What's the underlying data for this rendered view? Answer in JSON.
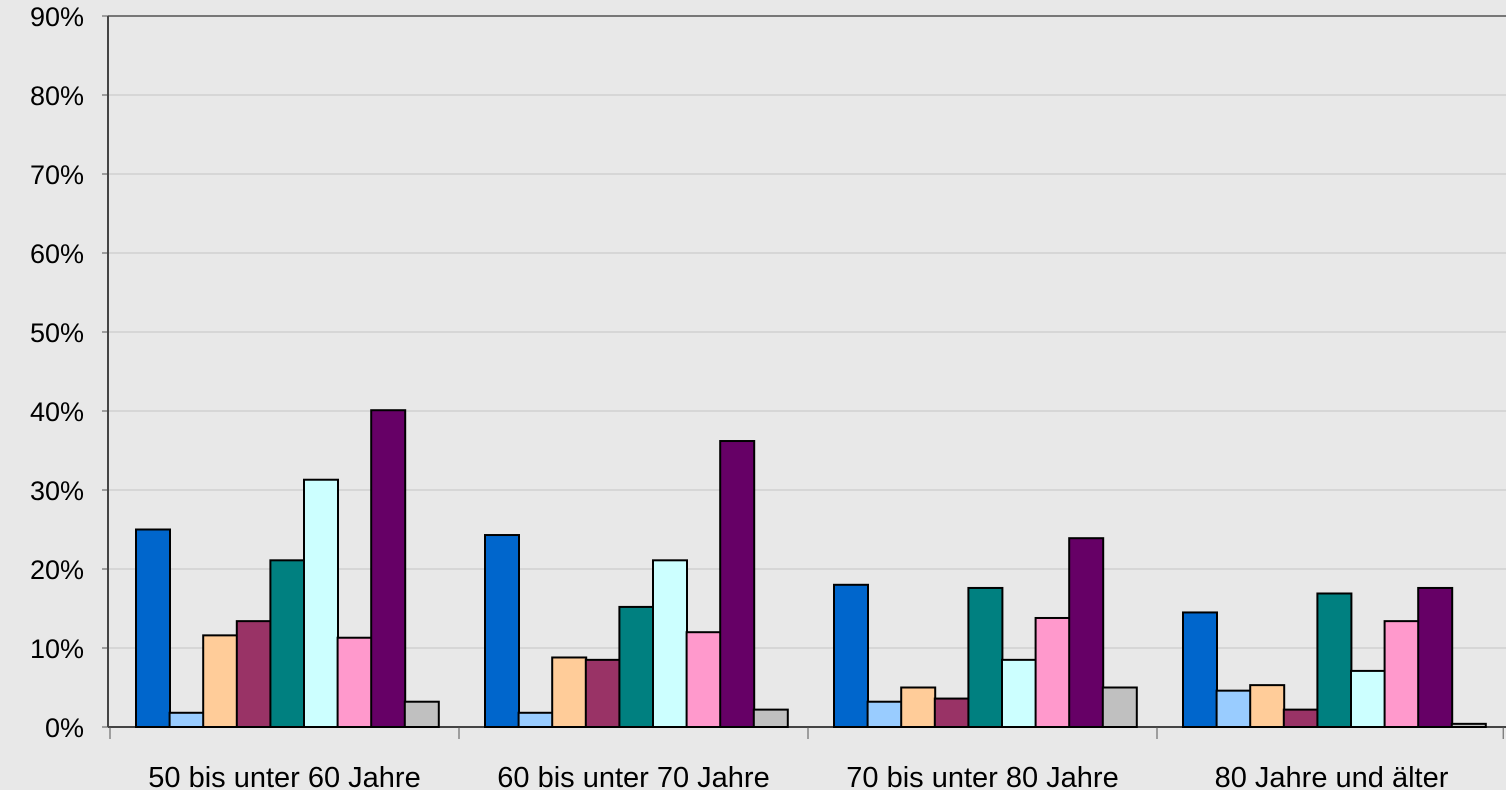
{
  "chart_data": {
    "type": "bar",
    "title": "",
    "xlabel": "",
    "ylabel": "",
    "ylim": [
      0,
      90
    ],
    "yticks": [
      0,
      10,
      20,
      30,
      40,
      50,
      60,
      70,
      80,
      90
    ],
    "ytick_labels": [
      "0%",
      "10%",
      "20%",
      "30%",
      "40%",
      "50%",
      "60%",
      "70%",
      "80%",
      "90%"
    ],
    "grid": true,
    "legend": "none",
    "categories": [
      "50 bis unter 60 Jahre",
      "60 bis unter 70 Jahre",
      "70 bis unter 80 Jahre",
      "80 Jahre und älter"
    ],
    "series": [
      {
        "color": "#0066cc",
        "values": [
          25.0,
          24.3,
          18.0,
          14.5
        ]
      },
      {
        "color": "#99ccff",
        "values": [
          1.8,
          1.8,
          3.2,
          4.6
        ]
      },
      {
        "color": "#ffcc99",
        "values": [
          11.6,
          8.8,
          5.0,
          5.3
        ]
      },
      {
        "color": "#993366",
        "values": [
          13.4,
          8.5,
          3.6,
          2.2
        ]
      },
      {
        "color": "#008080",
        "values": [
          21.1,
          15.2,
          17.6,
          16.9
        ]
      },
      {
        "color": "#ccffff",
        "values": [
          31.3,
          21.1,
          8.5,
          7.1
        ]
      },
      {
        "color": "#ff99cc",
        "values": [
          11.3,
          12.0,
          13.8,
          13.4
        ]
      },
      {
        "color": "#660066",
        "values": [
          40.1,
          36.2,
          23.9,
          17.6
        ]
      },
      {
        "color": "#c0c0c0",
        "values": [
          3.2,
          2.2,
          5.0,
          0.4
        ]
      }
    ]
  }
}
